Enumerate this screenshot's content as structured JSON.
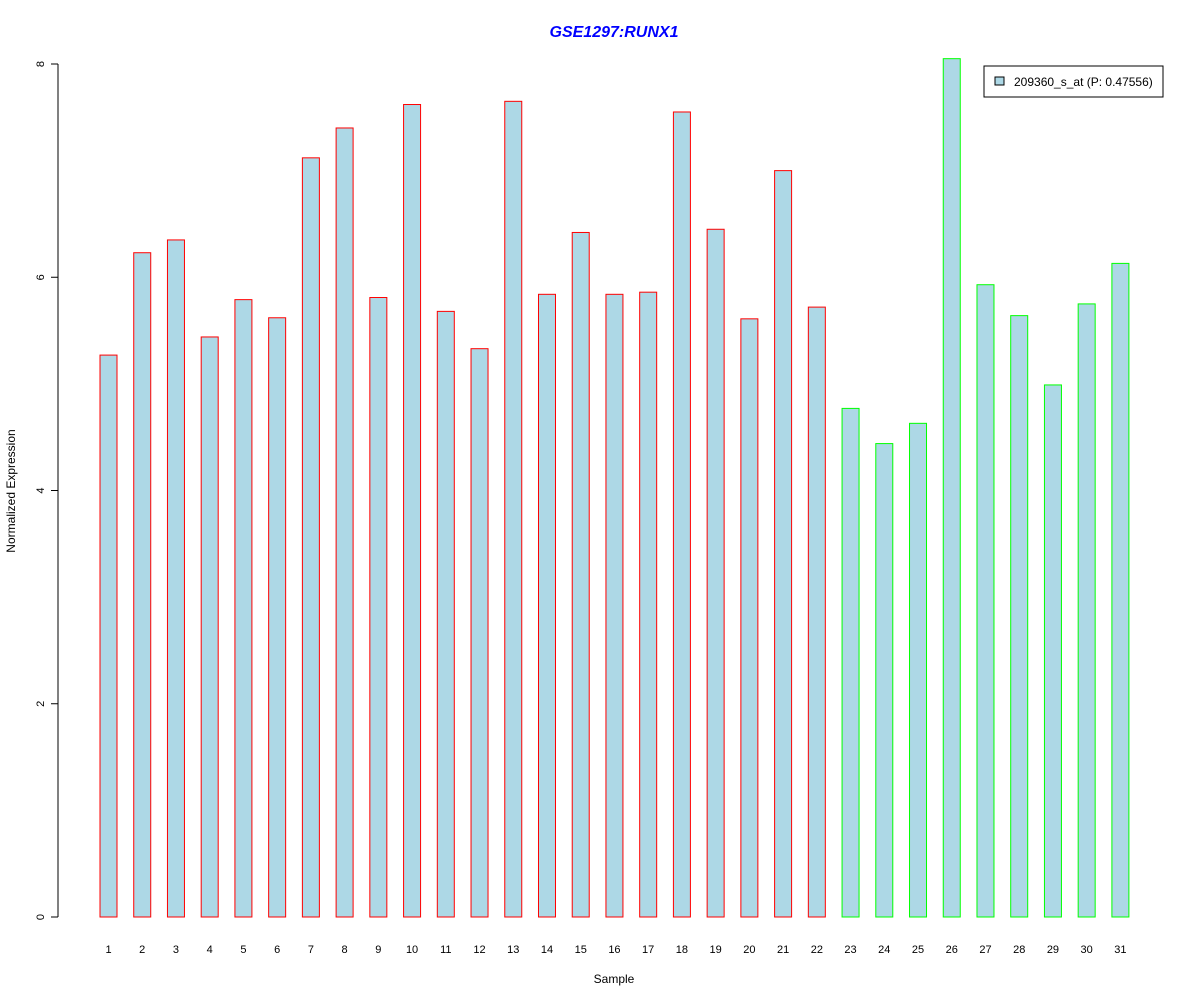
{
  "chart_data": {
    "type": "bar",
    "title": "GSE1297:RUNX1",
    "xlabel": "Sample",
    "ylabel": "Normalized Expression",
    "ylim": [
      0,
      8
    ],
    "yticks": [
      "0",
      "2",
      "4",
      "6",
      "8"
    ],
    "grid": false,
    "legend": {
      "position": "top-right",
      "label": "209360_s_at (P: 0.47556)"
    },
    "categories": [
      "1",
      "2",
      "3",
      "4",
      "5",
      "6",
      "7",
      "8",
      "9",
      "10",
      "11",
      "12",
      "13",
      "14",
      "15",
      "16",
      "17",
      "18",
      "19",
      "20",
      "21",
      "22",
      "23",
      "24",
      "25",
      "26",
      "27",
      "28",
      "29",
      "30",
      "31"
    ],
    "values": [
      5.27,
      6.23,
      6.35,
      5.44,
      5.79,
      5.62,
      7.12,
      7.4,
      5.81,
      7.62,
      5.68,
      5.33,
      7.65,
      5.84,
      6.42,
      5.84,
      5.86,
      7.55,
      6.45,
      5.61,
      7.0,
      5.72,
      4.77,
      4.44,
      4.63,
      8.05,
      5.93,
      5.64,
      4.99,
      5.75,
      6.13
    ],
    "groups": [
      "red",
      "red",
      "red",
      "red",
      "red",
      "red",
      "red",
      "red",
      "red",
      "red",
      "red",
      "red",
      "red",
      "red",
      "red",
      "red",
      "red",
      "red",
      "red",
      "red",
      "red",
      "red",
      "green",
      "green",
      "green",
      "green",
      "green",
      "green",
      "green",
      "green",
      "green"
    ],
    "colors": {
      "fill": "#add8e6",
      "red": "#ff0000",
      "green": "#00ff00",
      "title": "#0000ff"
    }
  }
}
